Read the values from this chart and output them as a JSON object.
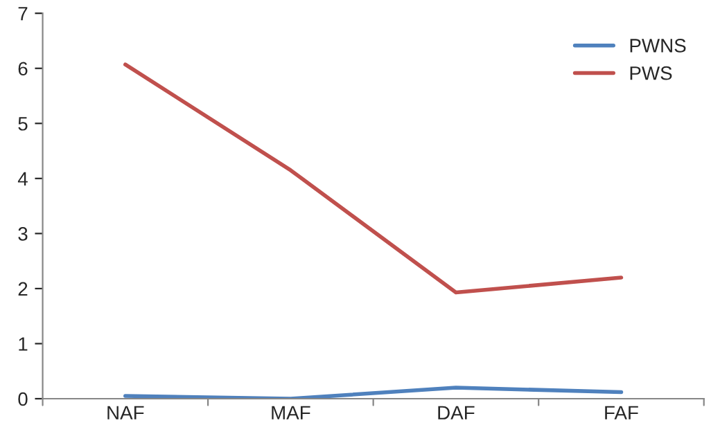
{
  "chart_data": {
    "type": "line",
    "categories": [
      "NAF",
      "MAF",
      "DAF",
      "FAF"
    ],
    "series": [
      {
        "name": "PWNS",
        "color": "#4f81bd",
        "values": [
          0.05,
          0.0,
          0.2,
          0.12
        ]
      },
      {
        "name": "PWS",
        "color": "#c0504d",
        "values": [
          6.07,
          4.15,
          1.93,
          2.2
        ]
      }
    ],
    "ylim": [
      0,
      7
    ],
    "yticks": [
      0,
      1,
      2,
      3,
      4,
      5,
      6,
      7
    ],
    "grid": false,
    "legend": "top right",
    "marker": "none",
    "line_style": "solid"
  }
}
